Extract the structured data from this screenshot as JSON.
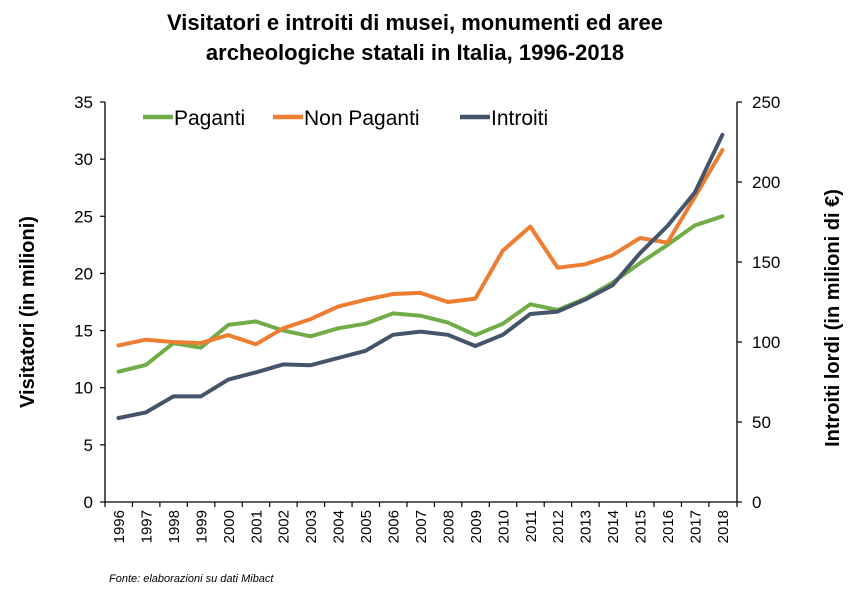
{
  "chart_data": {
    "type": "line",
    "title": "Visitatori e introiti di musei, monumenti ed aree archeologiche statali in Italia, 1996-2018",
    "title_lines": [
      "Visitatori e introiti di musei, monumenti ed aree",
      "archeologiche statali in Italia, 1996-2018"
    ],
    "ylabel": "Visitatori (in milioni)",
    "y2label": "Introiti lordi (in milioni di €)",
    "ylim": [
      0,
      35
    ],
    "y2lim": [
      0,
      250
    ],
    "yticks": [
      "0",
      "5",
      "10",
      "15",
      "20",
      "25",
      "30",
      "35"
    ],
    "y2ticks": [
      "0",
      "50",
      "100",
      "150",
      "200",
      "250"
    ],
    "categories": [
      "1996",
      "1997",
      "1998",
      "1999",
      "2000",
      "2001",
      "2002",
      "2003",
      "2004",
      "2005",
      "2006",
      "2007",
      "2008",
      "2009",
      "2010",
      "2011",
      "2012",
      "2013",
      "2014",
      "2015",
      "2016",
      "2017",
      "2018"
    ],
    "series": [
      {
        "name": "Paganti",
        "axis": "left",
        "color": "#70ad47",
        "values": [
          11.4,
          12.0,
          13.9,
          13.5,
          15.5,
          15.8,
          15.0,
          14.5,
          15.2,
          15.6,
          16.5,
          16.3,
          15.7,
          14.6,
          15.6,
          17.3,
          16.8,
          17.8,
          19.2,
          20.9,
          22.5,
          24.2,
          25.0
        ]
      },
      {
        "name": "Non Paganti",
        "axis": "left",
        "color": "#ed7d31",
        "values": [
          13.7,
          14.2,
          14.0,
          13.9,
          14.6,
          13.8,
          15.2,
          16.0,
          17.1,
          17.7,
          18.2,
          18.3,
          17.5,
          17.8,
          22.0,
          24.1,
          20.5,
          20.8,
          21.6,
          23.1,
          22.7,
          26.7,
          30.8
        ]
      },
      {
        "name": "Introiti",
        "axis": "right",
        "color": "#44546a",
        "values": [
          52.5,
          56.0,
          66.0,
          66.0,
          76.5,
          81.0,
          86.0,
          85.5,
          90.0,
          94.5,
          104.5,
          106.5,
          104.5,
          97.5,
          104.5,
          117.5,
          119.0,
          126.5,
          135.5,
          155.5,
          172.5,
          193.5,
          229.5
        ]
      }
    ],
    "legend_position": "top-left",
    "grid": false,
    "source": "Fonte: elaborazioni su dati Mibact"
  }
}
